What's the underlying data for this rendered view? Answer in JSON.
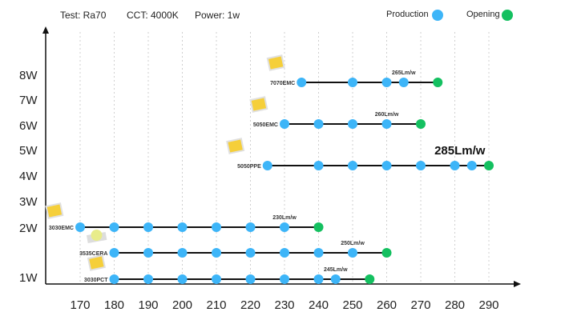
{
  "header": {
    "test": "Test: Ra70",
    "cct": "CCT: 4000K",
    "power": "Power: 1w"
  },
  "legend": [
    {
      "label": "Production",
      "color": "#3db5f8"
    },
    {
      "label": "Opening",
      "color": "#14c060"
    }
  ],
  "chart_data": {
    "type": "scatter",
    "xlim": [
      160,
      300
    ],
    "x_ticks": [
      170,
      180,
      190,
      200,
      210,
      220,
      230,
      240,
      250,
      260,
      270,
      280,
      290
    ],
    "y_ticks": [
      "8W",
      "7W",
      "6W",
      "5W",
      "4W",
      "3W",
      "2W",
      "1W"
    ],
    "grid": "vertical dotted",
    "legend_position": "top-right",
    "series": [
      {
        "name": "7070EMC",
        "production": [
          235,
          250,
          260,
          265
        ],
        "opening": 275,
        "annotation": "265Lm/w",
        "annotation_x": 265
      },
      {
        "name": "5050EMC",
        "production": [
          230,
          240,
          250,
          260
        ],
        "opening": 270,
        "annotation": "260Lm/w",
        "annotation_x": 260
      },
      {
        "name": "5050PPE",
        "production": [
          225,
          240,
          250,
          260,
          270,
          280,
          285
        ],
        "opening": 290,
        "annotation": "285Lm/w",
        "annotation_x": 285,
        "annotation_large": true
      },
      {
        "name": "3030EMC",
        "production": [
          170,
          180,
          190,
          200,
          210,
          220,
          230
        ],
        "opening": 240,
        "annotation": "230Lm/w",
        "annotation_x": 230
      },
      {
        "name": "3535CERA",
        "production": [
          180,
          190,
          200,
          210,
          220,
          230,
          240,
          250
        ],
        "opening": 260,
        "annotation": "250Lm/w",
        "annotation_x": 250
      },
      {
        "name": "3030PCT",
        "production": [
          180,
          190,
          200,
          210,
          220,
          230,
          240,
          245
        ],
        "opening": 255,
        "annotation": "245Lm/w",
        "annotation_x": 245
      }
    ]
  }
}
